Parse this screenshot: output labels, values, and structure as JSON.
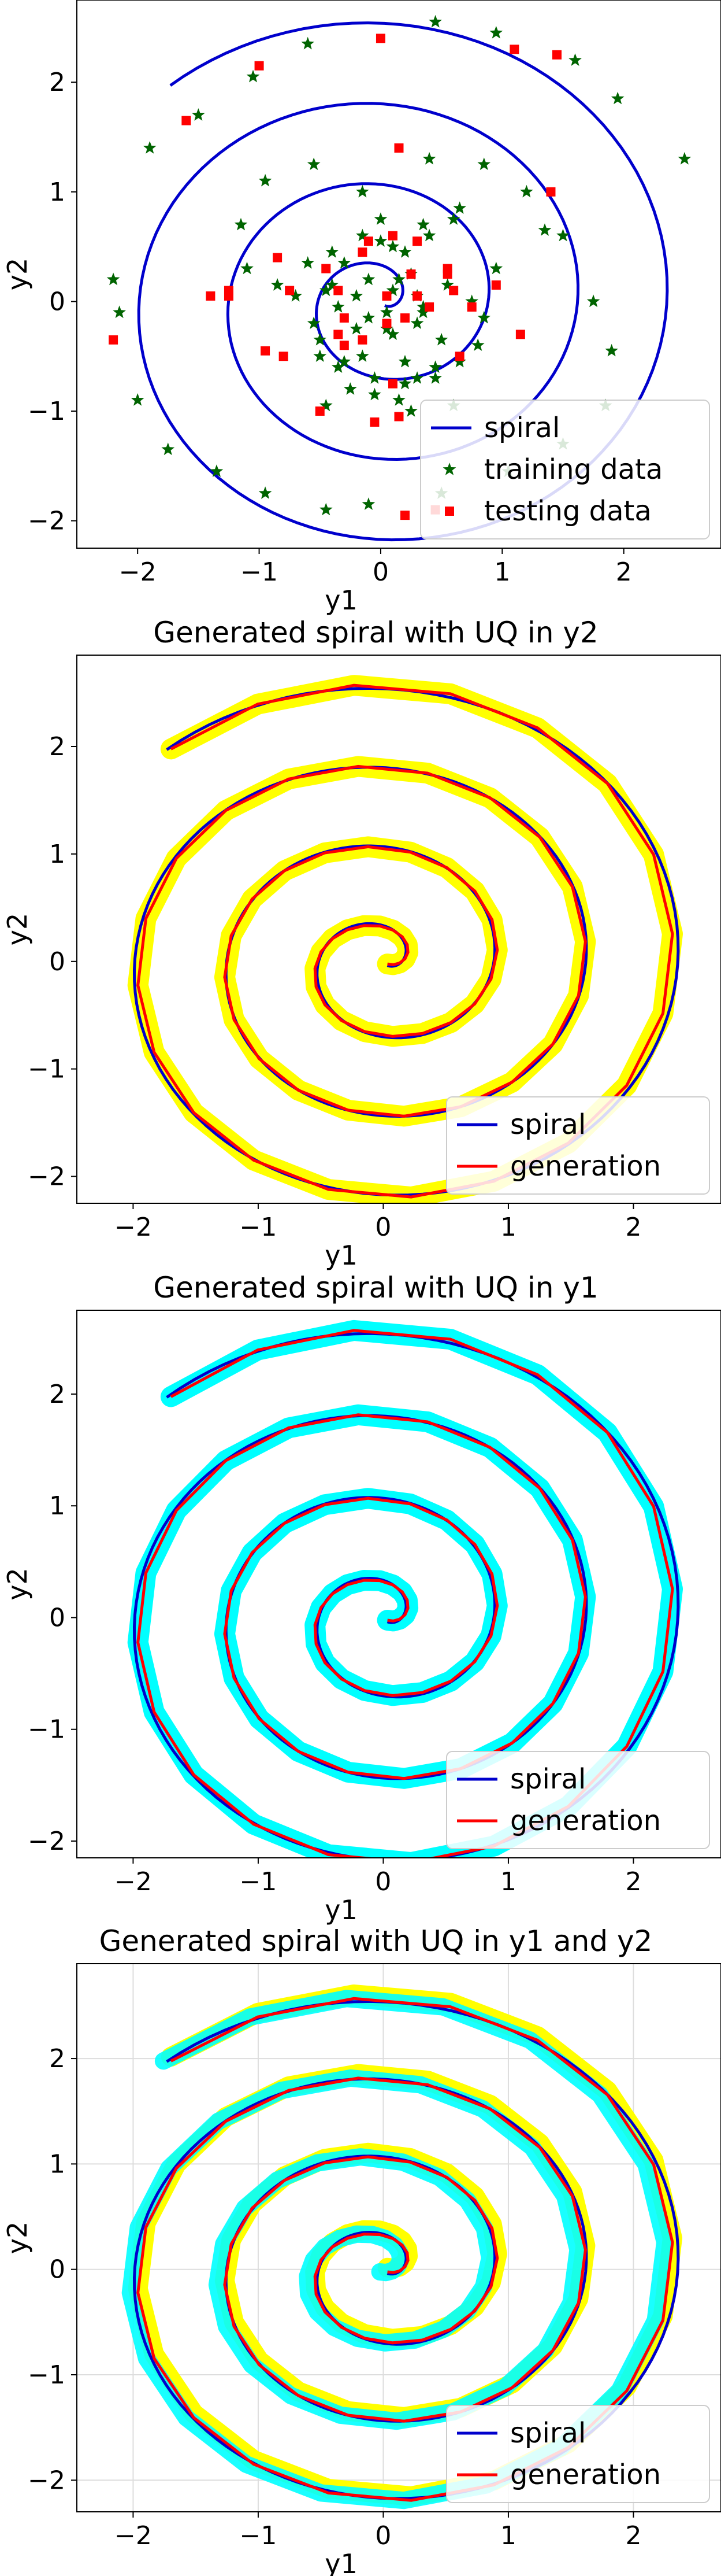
{
  "chart_data": [
    {
      "type": "scatter",
      "title": "",
      "xlabel": "y1",
      "ylabel": "y2",
      "xlim": [
        -2.5,
        2.8
      ],
      "ylim": [
        -2.25,
        2.75
      ],
      "xticks": [
        -2,
        -1,
        0,
        1,
        2
      ],
      "yticks": [
        -2,
        -1,
        0,
        1,
        2
      ],
      "grid": false,
      "legend_position": "bottom-right",
      "series": [
        {
          "name": "spiral",
          "kind": "spiral",
          "color": "#0000cc"
        },
        {
          "name": "training data",
          "kind": "scatter",
          "marker": "star",
          "color": "#006400",
          "x": [
            -1.9,
            -1.5,
            -1.05,
            -0.6,
            0.45,
            0.95,
            1.6,
            1.95,
            2.5,
            -2.2,
            -2.15,
            -2.0,
            -1.75,
            -1.35,
            -0.95,
            -0.45,
            -0.1,
            0.5,
            1.05,
            1.5,
            1.85,
            1.9,
            1.75,
            1.5,
            -0.15,
            0.4,
            0.85,
            1.2,
            1.35,
            -0.55,
            -0.95,
            -1.15,
            -1.1,
            -0.85,
            -0.4,
            0.0,
            0.35,
            0.65,
            0.95,
            0.25,
            0.6,
            -0.45,
            -0.25,
            -0.05,
            0.15,
            0.3,
            0.45,
            0.5,
            0.35,
            0.1,
            -0.15,
            -0.35,
            -0.5,
            -0.55,
            -0.45,
            -0.3,
            -0.15,
            0.0,
            0.1,
            0.2,
            0.25,
            -0.2,
            0.05,
            0.3,
            0.55,
            0.75,
            0.85,
            0.8,
            0.65,
            0.45,
            0.2,
            -0.05,
            -0.3,
            -0.5,
            -0.2,
            -0.35,
            -0.1,
            0.15,
            0.35,
            0.3,
            0.05,
            -0.1,
            0.4,
            0.6,
            -0.6,
            -0.7,
            -0.4,
            0.1,
            0.2
          ],
          "y": [
            1.4,
            1.7,
            2.05,
            2.35,
            2.55,
            2.45,
            2.2,
            1.85,
            1.3,
            0.2,
            -0.1,
            -0.9,
            -1.35,
            -1.55,
            -1.75,
            -1.9,
            -1.85,
            -1.75,
            -1.55,
            -1.3,
            -0.95,
            -0.45,
            0.0,
            0.6,
            1.0,
            1.3,
            1.25,
            1.0,
            0.65,
            1.25,
            1.1,
            0.7,
            0.3,
            0.15,
            0.15,
            0.75,
            0.7,
            0.85,
            0.3,
            -1.0,
            -0.95,
            -0.95,
            -0.8,
            -0.85,
            -0.9,
            -0.7,
            -0.6,
            -0.35,
            -0.1,
            -0.3,
            -0.5,
            -0.6,
            -0.5,
            -0.2,
            0.1,
            0.35,
            0.6,
            0.55,
            0.5,
            0.45,
            0.25,
            -0.25,
            -0.1,
            0.05,
            0.15,
            0.0,
            -0.15,
            -0.4,
            -0.55,
            -0.7,
            -0.75,
            -0.7,
            -0.55,
            -0.35,
            0.05,
            -0.05,
            0.2,
            0.2,
            -0.05,
            -0.2,
            -0.25,
            -0.15,
            0.6,
            0.75,
            0.35,
            0.05,
            0.45,
            0.1,
            -0.55
          ]
        },
        {
          "name": "testing data",
          "kind": "scatter",
          "marker": "square",
          "color": "#ff0000",
          "x": [
            -2.2,
            -1.6,
            -1.0,
            0.0,
            0.15,
            1.1,
            1.45,
            0.15,
            1.4,
            -1.4,
            -0.95,
            -0.8,
            -0.45,
            -0.35,
            -0.15,
            0.05,
            0.25,
            0.55,
            0.65,
            0.75,
            0.95,
            1.15,
            -0.75,
            -0.3,
            0.3,
            0.6,
            -0.15,
            0.05,
            0.2,
            -0.1,
            -0.3,
            0.3,
            0.4,
            0.1,
            -1.25,
            0.45,
            -0.05,
            -0.85,
            -0.35,
            0.1,
            0.2,
            -1.25,
            -0.5,
            0.55
          ],
          "y": [
            -0.35,
            1.65,
            2.15,
            2.4,
            1.4,
            2.3,
            2.25,
            -1.05,
            1.0,
            0.05,
            -0.45,
            -0.5,
            0.3,
            0.1,
            -0.35,
            -0.2,
            0.25,
            0.3,
            -0.5,
            -0.05,
            0.15,
            -0.3,
            0.1,
            -0.15,
            0.05,
            0.1,
            0.45,
            0.05,
            -0.15,
            0.55,
            -0.4,
            0.55,
            -0.05,
            -0.75,
            0.1,
            -1.9,
            -1.1,
            0.4,
            -0.3,
            0.6,
            -1.95,
            0.05,
            -1.0,
            0.25
          ]
        }
      ]
    },
    {
      "type": "line",
      "title": "Generated spiral with UQ in y2",
      "xlabel": "y1",
      "ylabel": "y2",
      "xlim": [
        -2.45,
        2.7
      ],
      "ylim": [
        -2.25,
        2.85
      ],
      "xticks": [
        -2,
        -1,
        0,
        1,
        2
      ],
      "yticks": [
        -2,
        -1,
        0,
        1,
        2
      ],
      "grid": false,
      "legend_position": "bottom-right",
      "uncertainty": "y2",
      "uncertainty_color": "#ffff00",
      "series": [
        {
          "name": "spiral",
          "kind": "spiral",
          "color": "#0000cc"
        },
        {
          "name": "generation",
          "kind": "generation",
          "color": "#ff0000"
        }
      ]
    },
    {
      "type": "line",
      "title": "Generated spiral with UQ in y1",
      "xlabel": "y1",
      "ylabel": "y2",
      "xlim": [
        -2.45,
        2.7
      ],
      "ylim": [
        -2.15,
        2.75
      ],
      "xticks": [
        -2,
        -1,
        0,
        1,
        2
      ],
      "yticks": [
        -2,
        -1,
        0,
        1,
        2
      ],
      "grid": false,
      "legend_position": "bottom-right",
      "uncertainty": "y1",
      "uncertainty_color": "#00ffff",
      "series": [
        {
          "name": "spiral",
          "kind": "spiral",
          "color": "#0000cc"
        },
        {
          "name": "generation",
          "kind": "generation",
          "color": "#ff0000"
        }
      ]
    },
    {
      "type": "line",
      "title": "Generated spiral with UQ in y1 and y2",
      "xlabel": "y1",
      "ylabel": "y2",
      "xlim": [
        -2.45,
        2.7
      ],
      "ylim": [
        -2.3,
        2.9
      ],
      "xticks": [
        -2,
        -1,
        0,
        1,
        2
      ],
      "yticks": [
        -2,
        -1,
        0,
        1,
        2
      ],
      "grid": true,
      "legend_position": "bottom-right",
      "uncertainty": "y1 and y2",
      "uncertainty_color": "#00ffff",
      "uncertainty_color_2": "#ffff00",
      "series": [
        {
          "name": "spiral",
          "kind": "spiral",
          "color": "#0000cc"
        },
        {
          "name": "generation",
          "kind": "generation",
          "color": "#ff0000"
        }
      ]
    }
  ]
}
